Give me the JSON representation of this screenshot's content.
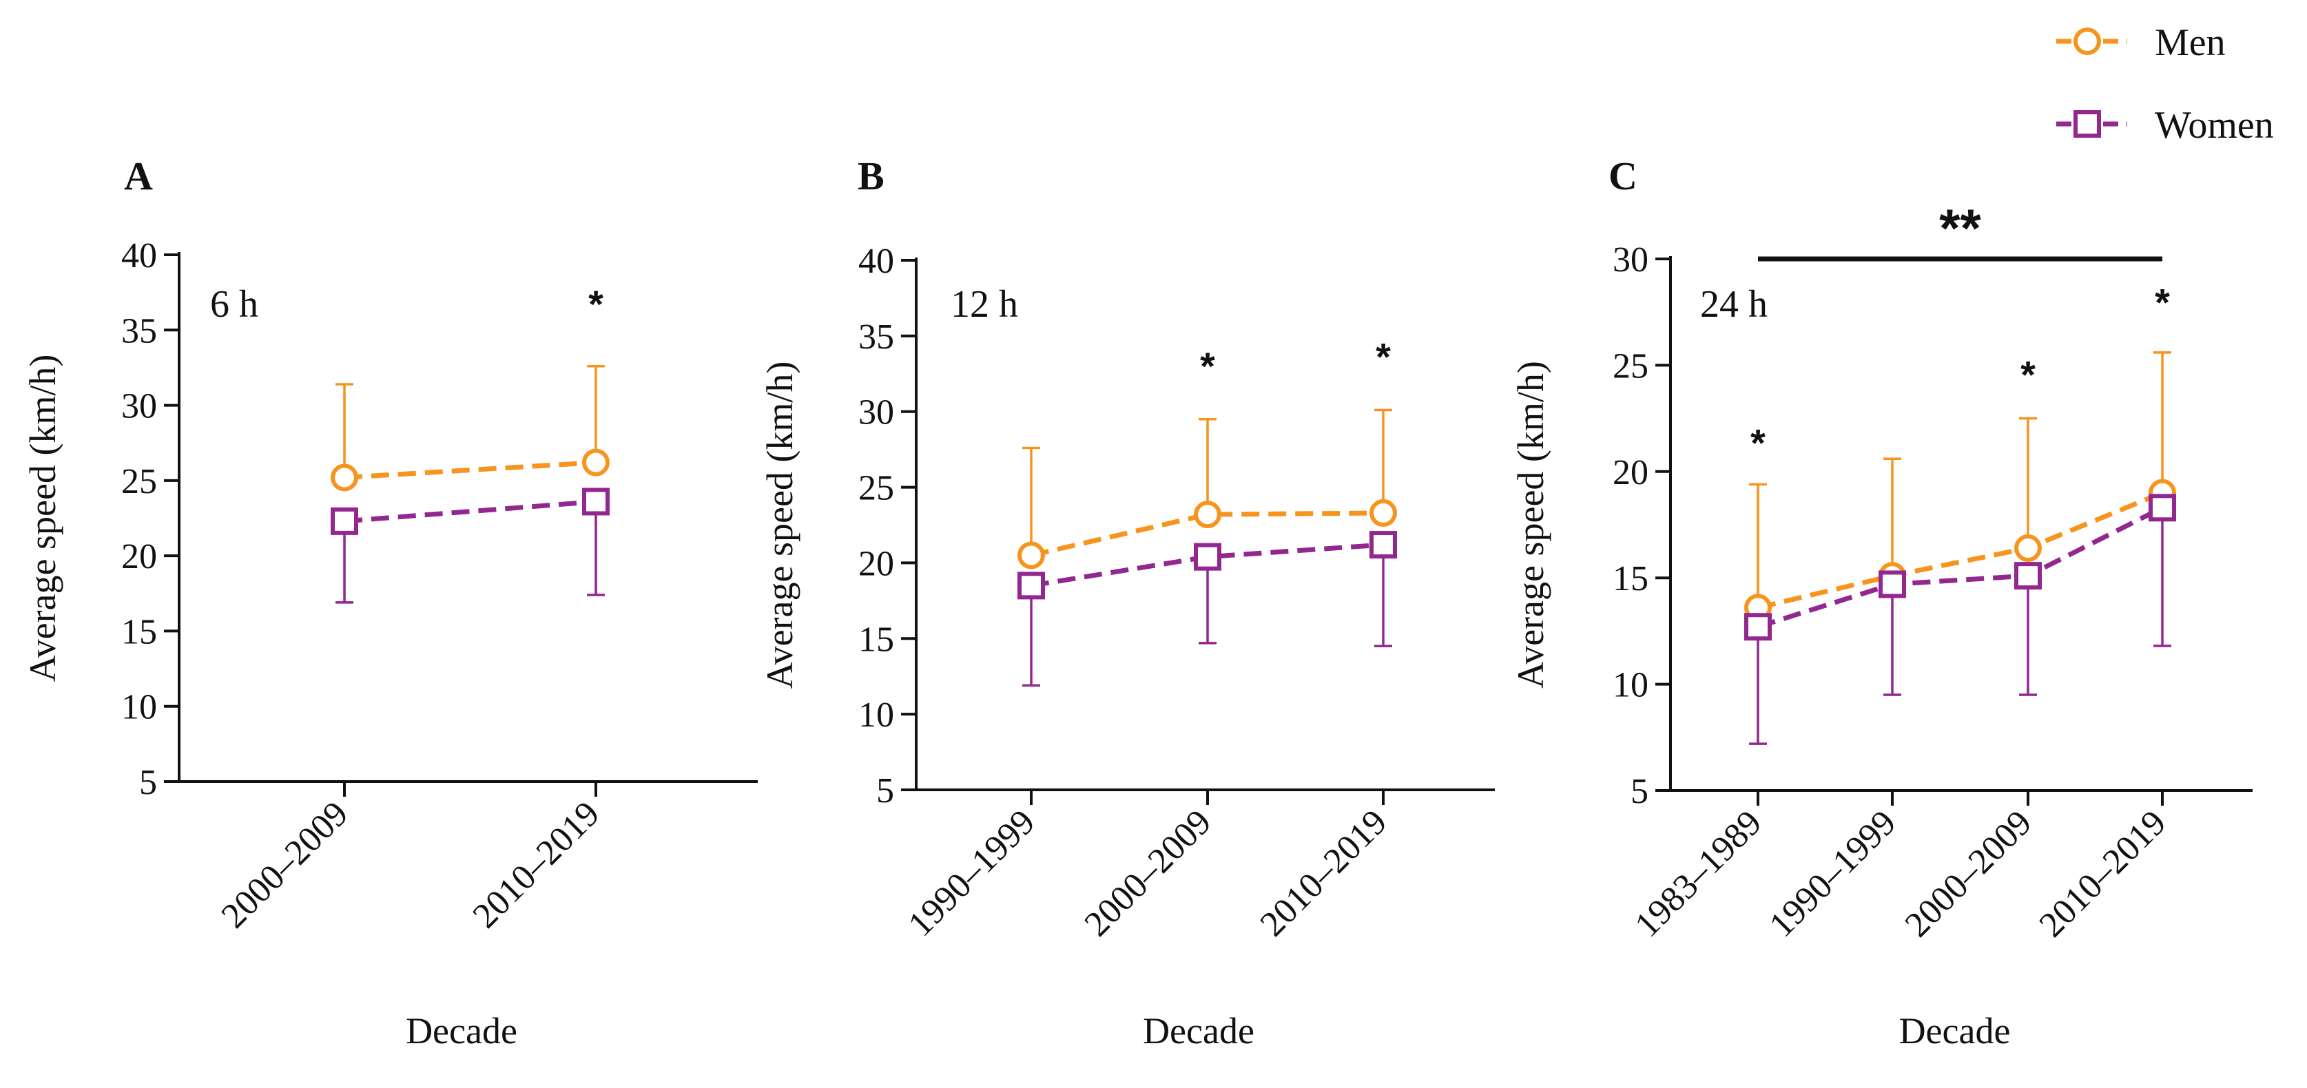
{
  "colors": {
    "men": "#F7941D",
    "women": "#92278F",
    "axis": "#111111"
  },
  "legend": [
    {
      "key": "men",
      "label": "Men",
      "marker": "circle"
    },
    {
      "key": "women",
      "label": "Women",
      "marker": "square"
    }
  ],
  "chart_data": [
    {
      "type": "line",
      "panel": "A",
      "label": "6 h",
      "xlabel": "Decade",
      "ylabel": "Average speed (km/h)",
      "ylim": [
        5,
        40
      ],
      "yticks": [
        5,
        10,
        15,
        20,
        25,
        30,
        35,
        40
      ],
      "categories": [
        "2000–2009",
        "2010–2019"
      ],
      "series": [
        {
          "name": "Men",
          "key": "men",
          "values": [
            25.2,
            26.2
          ],
          "error_upper": [
            31.4,
            32.6
          ]
        },
        {
          "name": "Women",
          "key": "women",
          "values": [
            22.3,
            23.6
          ],
          "error_lower": [
            16.9,
            17.4
          ]
        }
      ],
      "significance": [
        {
          "category": "2010–2019",
          "label": "*",
          "y": 37.2
        }
      ]
    },
    {
      "type": "line",
      "panel": "B",
      "label": "12 h",
      "xlabel": "Decade",
      "ylabel": "Average speed (km/h)",
      "ylim": [
        5,
        40
      ],
      "yticks": [
        5,
        10,
        15,
        20,
        25,
        30,
        35,
        40
      ],
      "categories": [
        "1990–1999",
        "2000–2009",
        "2010–2019"
      ],
      "series": [
        {
          "name": "Men",
          "key": "men",
          "values": [
            20.5,
            23.2,
            23.3
          ],
          "error_upper": [
            27.6,
            29.5,
            30.1
          ]
        },
        {
          "name": "Women",
          "key": "women",
          "values": [
            18.5,
            20.4,
            21.2
          ],
          "error_lower": [
            11.9,
            14.7,
            14.5
          ]
        }
      ],
      "significance": [
        {
          "category": "2000–2009",
          "label": "*",
          "y": 33.5
        },
        {
          "category": "2010–2019",
          "label": "*",
          "y": 34.1
        }
      ]
    },
    {
      "type": "line",
      "panel": "C",
      "label": "24 h",
      "xlabel": "Decade",
      "ylabel": "Average speed (km/h)",
      "ylim": [
        5,
        30
      ],
      "yticks": [
        5,
        10,
        15,
        20,
        25,
        30
      ],
      "categories": [
        "1983–1989",
        "1990–1999",
        "2000–2009",
        "2010–2019"
      ],
      "series": [
        {
          "name": "Men",
          "key": "men",
          "values": [
            13.6,
            15.1,
            16.4,
            19.0
          ],
          "error_upper": [
            19.4,
            20.6,
            22.5,
            25.6
          ]
        },
        {
          "name": "Women",
          "key": "women",
          "values": [
            12.7,
            14.7,
            15.1,
            18.3
          ],
          "error_lower": [
            7.2,
            9.5,
            9.5,
            11.8
          ]
        }
      ],
      "significance": [
        {
          "category": "1983–1989",
          "label": "*",
          "y": 21.7
        },
        {
          "category": "2000–2009",
          "label": "*",
          "y": 24.9
        },
        {
          "category": "2010–2019",
          "label": "*",
          "y": 28.3
        }
      ],
      "bracket": {
        "from": "1983–1989",
        "to": "2010–2019",
        "label": "**",
        "y": 30
      }
    }
  ]
}
